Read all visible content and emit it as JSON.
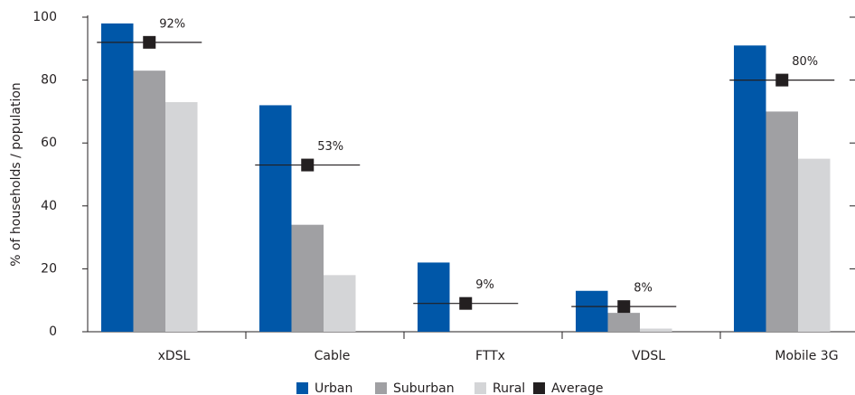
{
  "chart_data": {
    "type": "bar",
    "y_label": "% of households / population",
    "categories": [
      "xDSL",
      "Cable",
      "FTTx",
      "VDSL",
      "Mobile 3G"
    ],
    "series": [
      {
        "name": "Urban",
        "color": "#0057a8",
        "values": [
          98,
          72,
          22,
          13,
          91
        ]
      },
      {
        "name": "Suburban",
        "color": "#a0a0a3",
        "values": [
          83,
          34,
          0,
          6,
          70
        ]
      },
      {
        "name": "Rural",
        "color": "#d4d5d7",
        "values": [
          73,
          18,
          0,
          1,
          55
        ]
      },
      {
        "name": "Average",
        "color": "#231f20",
        "type": "marker",
        "values": [
          92,
          53,
          9,
          8,
          80
        ],
        "value_labels": [
          "92%",
          "53%",
          "9%",
          "8%",
          "80%"
        ]
      }
    ],
    "ylim": [
      0,
      100
    ],
    "yticks": [
      0,
      20,
      40,
      60,
      80,
      100
    ],
    "legend": "bottom"
  }
}
